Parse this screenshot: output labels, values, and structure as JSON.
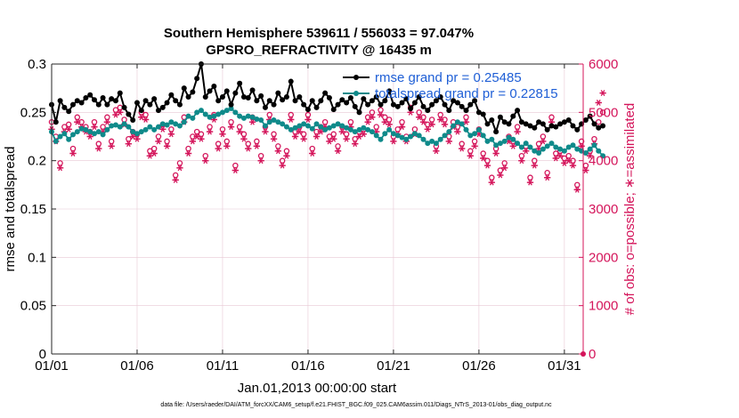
{
  "chart_data": {
    "type": "line",
    "title": "Southern Hemisphere 539611 / 556033 = 97.047%",
    "subtitle": "GPSRO_REFRACTIVITY @ 16435 m",
    "xlabel": "Jan.01,2013 00:00:00 start",
    "ylabel_left": "rmse and totalspread",
    "ylabel_right": "# of obs: o=possible; ∗=assimilated",
    "footnote": "data file: /Users/raeder/DAI/ATM_forcXX/CAM6_setup/f.e21.FHIST_BGC.f09_025.CAM6assim.011/Diags_NTrS_2013-01/obs_diag_output.nc",
    "xlim": [
      1,
      32.1
    ],
    "ylim_left": [
      0,
      0.3
    ],
    "ylim_right": [
      0,
      6000
    ],
    "x_ticks": [
      1,
      6,
      11,
      16,
      21,
      26,
      31
    ],
    "x_tick_labels": [
      "01/01",
      "01/06",
      "01/11",
      "01/16",
      "01/21",
      "01/26",
      "01/31"
    ],
    "y_ticks_left": [
      0,
      0.05,
      0.1,
      0.15,
      0.2,
      0.25,
      0.3
    ],
    "y_tick_labels_left": [
      "0",
      "0.05",
      "0.1",
      "0.15",
      "0.2",
      "0.25",
      "0.3"
    ],
    "y_ticks_right": [
      0,
      1000,
      2000,
      3000,
      4000,
      5000,
      6000
    ],
    "y_tick_labels_right": [
      "0",
      "1000",
      "2000",
      "3000",
      "4000",
      "5000",
      "6000"
    ],
    "grid": true,
    "legend_position": "top-right",
    "colors": {
      "rmse": "#000000",
      "spread": "#0f8a8a",
      "obs": "#d4145a",
      "legend_text": "#1f5fd6",
      "grid": "#e8c8d4",
      "axis_left": "#262626",
      "axis_right": "#d4145a"
    },
    "series": [
      {
        "name": "rmse grand pr = 0.25485",
        "axis": "left",
        "marker": "filled-circle",
        "x_start": 1.0,
        "x_step": 0.25,
        "values": [
          0.258,
          0.24,
          0.262,
          0.255,
          0.251,
          0.258,
          0.262,
          0.26,
          0.265,
          0.268,
          0.263,
          0.258,
          0.265,
          0.258,
          0.264,
          0.262,
          0.27,
          0.255,
          0.248,
          0.242,
          0.26,
          0.252,
          0.262,
          0.258,
          0.264,
          0.252,
          0.255,
          0.26,
          0.268,
          0.262,
          0.258,
          0.275,
          0.266,
          0.271,
          0.285,
          0.3,
          0.266,
          0.272,
          0.277,
          0.262,
          0.266,
          0.272,
          0.258,
          0.27,
          0.28,
          0.266,
          0.265,
          0.273,
          0.262,
          0.267,
          0.255,
          0.262,
          0.258,
          0.27,
          0.263,
          0.266,
          0.282,
          0.262,
          0.266,
          0.258,
          0.253,
          0.262,
          0.255,
          0.262,
          0.27,
          0.265,
          0.253,
          0.258,
          0.263,
          0.26,
          0.265,
          0.256,
          0.25,
          0.264,
          0.258,
          0.262,
          0.266,
          0.258,
          0.262,
          0.272,
          0.258,
          0.256,
          0.26,
          0.264,
          0.254,
          0.26,
          0.266,
          0.256,
          0.252,
          0.258,
          0.262,
          0.266,
          0.258,
          0.252,
          0.262,
          0.26,
          0.256,
          0.252,
          0.258,
          0.262,
          0.25,
          0.248,
          0.238,
          0.242,
          0.23,
          0.245,
          0.24,
          0.238,
          0.246,
          0.252,
          0.24,
          0.238,
          0.236,
          0.234,
          0.24,
          0.238,
          0.232,
          0.236,
          0.235,
          0.238,
          0.24,
          0.242,
          0.236,
          0.232,
          0.238,
          0.242,
          0.246,
          0.238,
          0.234,
          0.236
        ]
      },
      {
        "name": "totalspread grand pr = 0.22815",
        "axis": "left",
        "marker": "filled-circle",
        "x_start": 1.0,
        "x_step": 0.25,
        "values": [
          0.23,
          0.22,
          0.225,
          0.228,
          0.222,
          0.227,
          0.23,
          0.233,
          0.232,
          0.23,
          0.228,
          0.23,
          0.227,
          0.232,
          0.236,
          0.237,
          0.235,
          0.238,
          0.235,
          0.23,
          0.228,
          0.23,
          0.232,
          0.235,
          0.232,
          0.235,
          0.238,
          0.237,
          0.24,
          0.238,
          0.236,
          0.24,
          0.246,
          0.244,
          0.25,
          0.252,
          0.248,
          0.245,
          0.246,
          0.248,
          0.25,
          0.252,
          0.254,
          0.25,
          0.246,
          0.244,
          0.246,
          0.245,
          0.243,
          0.242,
          0.236,
          0.24,
          0.242,
          0.24,
          0.238,
          0.235,
          0.232,
          0.234,
          0.236,
          0.238,
          0.236,
          0.233,
          0.238,
          0.235,
          0.232,
          0.234,
          0.236,
          0.238,
          0.236,
          0.234,
          0.232,
          0.23,
          0.232,
          0.234,
          0.232,
          0.23,
          0.226,
          0.222,
          0.228,
          0.232,
          0.228,
          0.226,
          0.224,
          0.222,
          0.225,
          0.228,
          0.226,
          0.222,
          0.218,
          0.22,
          0.218,
          0.222,
          0.226,
          0.23,
          0.236,
          0.24,
          0.238,
          0.232,
          0.226,
          0.228,
          0.232,
          0.226,
          0.22,
          0.222,
          0.216,
          0.218,
          0.22,
          0.224,
          0.222,
          0.218,
          0.214,
          0.218,
          0.214,
          0.21,
          0.208,
          0.212,
          0.215,
          0.218,
          0.214,
          0.212,
          0.21,
          0.214,
          0.216,
          0.212,
          0.21,
          0.208,
          0.212,
          0.216,
          0.21,
          0.205
        ]
      },
      {
        "name": "possible",
        "axis": "right",
        "marker": "open-circle",
        "x_start": 1.0,
        "x_step": 0.25,
        "values": [
          4800,
          4500,
          3950,
          4700,
          4750,
          4250,
          4900,
          4800,
          4700,
          4600,
          4800,
          4350,
          4700,
          4900,
          4400,
          5050,
          5100,
          4850,
          4450,
          4600,
          4550,
          5000,
          4950,
          4200,
          4250,
          4500,
          4750,
          4400,
          4650,
          3700,
          3950,
          4900,
          4250,
          4500,
          4600,
          4550,
          4100,
          4700,
          4950,
          4350,
          4650,
          4400,
          4800,
          3900,
          4700,
          4550,
          4350,
          4900,
          4400,
          4100,
          4700,
          4950,
          4550,
          4300,
          4000,
          4200,
          4950,
          4600,
          4700,
          4550,
          4950,
          4250,
          4600,
          4700,
          4800,
          4500,
          4550,
          4300,
          4700,
          4550,
          4800,
          4450,
          4600,
          4650,
          4900,
          5000,
          4700,
          5050,
          4900,
          4850,
          4500,
          4650,
          4800,
          4500,
          5100,
          4650,
          5000,
          4900,
          4750,
          4850,
          4300,
          4950,
          4850,
          4500,
          4800,
          4700,
          4350,
          4900,
          4200,
          4400,
          4650,
          4150,
          4000,
          3650,
          4250,
          3800,
          3950,
          4500,
          4400,
          4700,
          4100,
          4300,
          3650,
          4000,
          4350,
          4500,
          3750,
          4900,
          4150,
          4200,
          4050,
          4100,
          4000,
          3500,
          4400,
          3900,
          4200,
          4450,
          4800,
          5000
        ]
      },
      {
        "name": "assimilated",
        "axis": "right",
        "marker": "asterisk",
        "x_start": 1.0,
        "x_step": 0.25,
        "values": [
          4650,
          4400,
          3850,
          4600,
          4650,
          4150,
          4800,
          4700,
          4600,
          4500,
          4700,
          4250,
          4600,
          4800,
          4300,
          4950,
          5000,
          4750,
          4350,
          4500,
          4450,
          4900,
          4850,
          4100,
          4150,
          4400,
          4650,
          4300,
          4550,
          3600,
          3850,
          4800,
          4150,
          4400,
          4500,
          4450,
          4000,
          4600,
          4850,
          4250,
          4550,
          4300,
          4700,
          3800,
          4600,
          4450,
          4250,
          4800,
          4300,
          4000,
          4600,
          4850,
          4450,
          4200,
          3900,
          4100,
          4850,
          4500,
          4600,
          4450,
          4850,
          4150,
          4500,
          4600,
          4700,
          4400,
          4450,
          4200,
          4600,
          4450,
          4700,
          4350,
          4500,
          4550,
          4800,
          4900,
          4600,
          4950,
          4800,
          4750,
          4400,
          4550,
          4700,
          4400,
          5000,
          4550,
          4900,
          4800,
          4650,
          4750,
          4200,
          4850,
          4750,
          4400,
          4700,
          4600,
          4250,
          4800,
          4100,
          4300,
          4550,
          4050,
          3900,
          3550,
          4150,
          3700,
          3850,
          4400,
          4300,
          4600,
          4000,
          4200,
          3550,
          3900,
          4250,
          4400,
          3650,
          4800,
          4050,
          4100,
          3950,
          4000,
          3900,
          3400,
          4300,
          3800,
          4100,
          4350,
          5200,
          5400
        ]
      }
    ],
    "legend": [
      {
        "name": "rmse grand pr = 0.25485"
      },
      {
        "name": "totalspread grand pr = 0.22815"
      }
    ]
  }
}
